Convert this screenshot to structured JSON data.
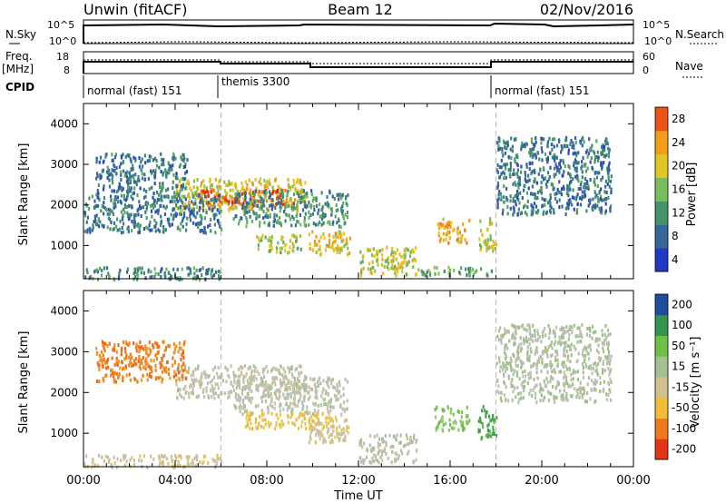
{
  "header": {
    "station": "Unwin (fitACF)",
    "beam": "Beam 12",
    "date": "02/Nov/2016"
  },
  "status_panel": {
    "nsky_label": "N.Sky",
    "nsearch_label": "N.Search",
    "freq_label_1": "Freq.",
    "freq_label_2": "[MHz]",
    "nave_label": "Nave",
    "cpid_label": "CPID",
    "noise_ticks": [
      "10^5",
      "10^0"
    ],
    "freq_ticks": [
      "18",
      "8"
    ],
    "nave_ticks": [
      "60",
      "0"
    ],
    "cpid_segments": [
      {
        "label": "normal (fast) 151",
        "start_hour": 0,
        "end_hour": 6
      },
      {
        "label": "themis 3300",
        "start_hour": 6,
        "end_hour": 18
      },
      {
        "label": "normal (fast) 151",
        "start_hour": 18,
        "end_hour": 24
      }
    ]
  },
  "chart_data": [
    {
      "type": "heatmap",
      "panel": "power",
      "ylabel": "Slant Range [km]",
      "ylim": [
        180,
        4500
      ],
      "yticks": [
        1000,
        2000,
        3000,
        4000
      ],
      "xlim": [
        0,
        24
      ],
      "colorbar": {
        "label": "Power [dB]",
        "ticks": [
          "4",
          "8",
          "12",
          "16",
          "20",
          "24",
          "28"
        ],
        "range": [
          0,
          30
        ]
      },
      "echo_regions": [
        {
          "hours": [
            4.0,
            9.7
          ],
          "range_km": [
            1900,
            2700
          ],
          "value": 20
        },
        {
          "hours": [
            5.0,
            8.8
          ],
          "range_km": [
            2050,
            2400
          ],
          "value": 28
        },
        {
          "hours": [
            0.0,
            6.0
          ],
          "range_km": [
            1350,
            2300
          ],
          "value": 8
        },
        {
          "hours": [
            6.5,
            11.5
          ],
          "range_km": [
            1500,
            2400
          ],
          "value": 10
        },
        {
          "hours": [
            7.5,
            9.5
          ],
          "range_km": [
            850,
            1300
          ],
          "value": 16
        },
        {
          "hours": [
            9.8,
            11.6
          ],
          "range_km": [
            800,
            1400
          ],
          "value": 20
        },
        {
          "hours": [
            12.0,
            14.5
          ],
          "range_km": [
            300,
            1000
          ],
          "value": 18
        },
        {
          "hours": [
            14.5,
            17.8
          ],
          "range_km": [
            300,
            500
          ],
          "value": 12
        },
        {
          "hours": [
            15.3,
            16.8
          ],
          "range_km": [
            1100,
            1700
          ],
          "value": 22
        },
        {
          "hours": [
            17.2,
            18.0
          ],
          "range_km": [
            900,
            1700
          ],
          "value": 18
        },
        {
          "hours": [
            0.0,
            6.0
          ],
          "range_km": [
            200,
            500
          ],
          "value": 10
        },
        {
          "hours": [
            0.5,
            4.5
          ],
          "range_km": [
            2300,
            3300
          ],
          "value": 8
        },
        {
          "hours": [
            18.0,
            23.0
          ],
          "range_km": [
            1800,
            3700
          ],
          "value": 8
        }
      ]
    },
    {
      "type": "heatmap",
      "panel": "velocity",
      "ylabel": "Slant Range [km]",
      "ylim": [
        180,
        4500
      ],
      "yticks": [
        1000,
        2000,
        3000,
        4000
      ],
      "xlim": [
        0,
        24
      ],
      "xlabel": "Time UT",
      "xticks": [
        "00:00",
        "04:00",
        "08:00",
        "12:00",
        "16:00",
        "20:00",
        "00:00"
      ],
      "colorbar": {
        "label": "Velocity [m s⁻¹]",
        "ticks": [
          "200",
          "100",
          "50",
          "15",
          "-15",
          "-50",
          "-100",
          "-200"
        ],
        "range": [
          -250,
          250
        ]
      },
      "echo_regions": [
        {
          "hours": [
            4.0,
            9.7
          ],
          "range_km": [
            1900,
            2700
          ],
          "value": 0
        },
        {
          "hours": [
            6.5,
            11.5
          ],
          "range_km": [
            1500,
            2400
          ],
          "value": 0
        },
        {
          "hours": [
            7.0,
            11.0
          ],
          "range_km": [
            1150,
            1550
          ],
          "value": -80
        },
        {
          "hours": [
            9.8,
            11.6
          ],
          "range_km": [
            800,
            1400
          ],
          "value": -30
        },
        {
          "hours": [
            12.0,
            14.5
          ],
          "range_km": [
            300,
            1000
          ],
          "value": 0
        },
        {
          "hours": [
            15.3,
            16.8
          ],
          "range_km": [
            1100,
            1700
          ],
          "value": 70
        },
        {
          "hours": [
            17.2,
            18.0
          ],
          "range_km": [
            900,
            1700
          ],
          "value": 130
        },
        {
          "hours": [
            0.0,
            6.0
          ],
          "range_km": [
            200,
            500
          ],
          "value": -30
        },
        {
          "hours": [
            0.5,
            4.5
          ],
          "range_km": [
            2300,
            3300
          ],
          "value": -150
        },
        {
          "hours": [
            18.0,
            23.0
          ],
          "range_km": [
            1800,
            3700
          ],
          "value": 20
        }
      ]
    }
  ]
}
